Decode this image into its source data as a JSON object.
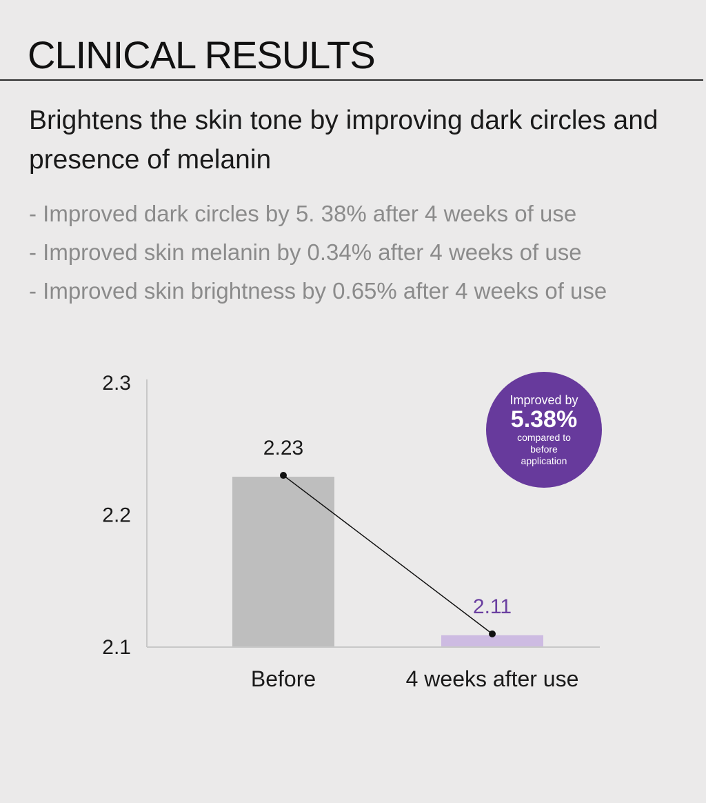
{
  "header": {
    "title": "CLINICAL RESULTS",
    "subtitle": "Brightens the skin tone by improving dark circles and presence of melanin"
  },
  "bullets": [
    "- Improved dark circles by 5. 38% after 4 weeks of use",
    "- Improved skin melanin by 0.34% after 4 weeks of use",
    "- Improved skin brightness by 0.65% after 4 weeks of use"
  ],
  "badge": {
    "line1": "Improved by",
    "value": "5.38%",
    "line3": "compared to before application"
  },
  "colors": {
    "background": "#ebeaea",
    "before_bar": "#bebebe",
    "after_bar": "#cdbbe2",
    "accent_purple": "#673a9c",
    "after_label": "#6a3fa0",
    "line": "#111111"
  },
  "chart_data": {
    "type": "bar",
    "title": "",
    "xlabel": "",
    "ylabel": "",
    "ylim": [
      2.1,
      2.3
    ],
    "yticks": [
      "2.1",
      "2.2",
      "2.3"
    ],
    "ytick_values": [
      2.1,
      2.2,
      2.3
    ],
    "categories": [
      "Before",
      "4 weeks after use"
    ],
    "values": [
      2.23,
      2.11
    ],
    "data_labels": [
      "2.23",
      "2.11"
    ],
    "overlay_line": true,
    "grid": false
  }
}
